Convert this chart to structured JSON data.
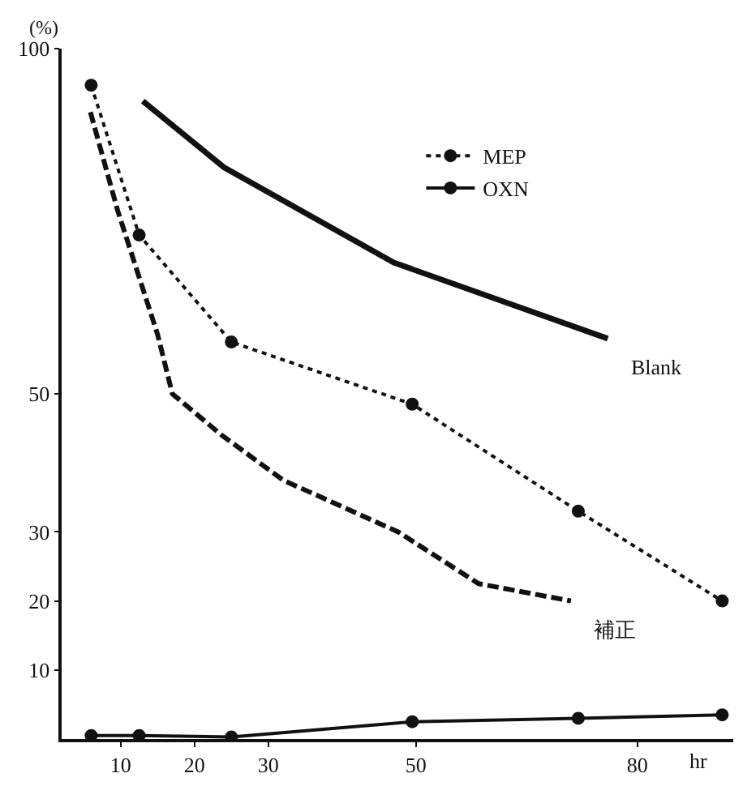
{
  "chart_data": {
    "type": "line",
    "xlabel": "hr",
    "ylabel": "(%)",
    "xlim": [
      2,
      93
    ],
    "ylim": [
      0,
      100
    ],
    "xticks": [
      10,
      20,
      30,
      50,
      80
    ],
    "yticks": [
      10,
      20,
      30,
      50,
      100
    ],
    "legend": "top",
    "series": [
      {
        "name": "MEP",
        "color": "#111111",
        "line_style": "dotted",
        "marker": "circle",
        "x": [
          6,
          12.5,
          25,
          49.5,
          72,
          91.5
        ],
        "values": [
          94.7,
          73,
          57.5,
          48.5,
          33,
          20
        ]
      },
      {
        "name": "OXN",
        "color": "#111111",
        "line_style": "solid",
        "marker": "circle",
        "x": [
          6,
          12.5,
          25,
          49.5,
          72,
          91.5
        ],
        "values": [
          0.5,
          0.5,
          0.3,
          2.5,
          3,
          3.5
        ]
      },
      {
        "name": "Blank",
        "color": "#111111",
        "line_style": "solid",
        "marker": "none",
        "x": [
          13,
          24,
          47,
          76
        ],
        "values": [
          92.4,
          82.8,
          69,
          58
        ]
      },
      {
        "name": "補正",
        "color": "#111111",
        "line_style": "dashed",
        "marker": "none",
        "x": [
          5.9,
          9.6,
          15,
          17,
          23.7,
          32,
          47.6,
          58.5,
          71
        ],
        "values": [
          90.8,
          76.5,
          58.6,
          50,
          44,
          37.5,
          30,
          22.5,
          20
        ]
      }
    ]
  }
}
